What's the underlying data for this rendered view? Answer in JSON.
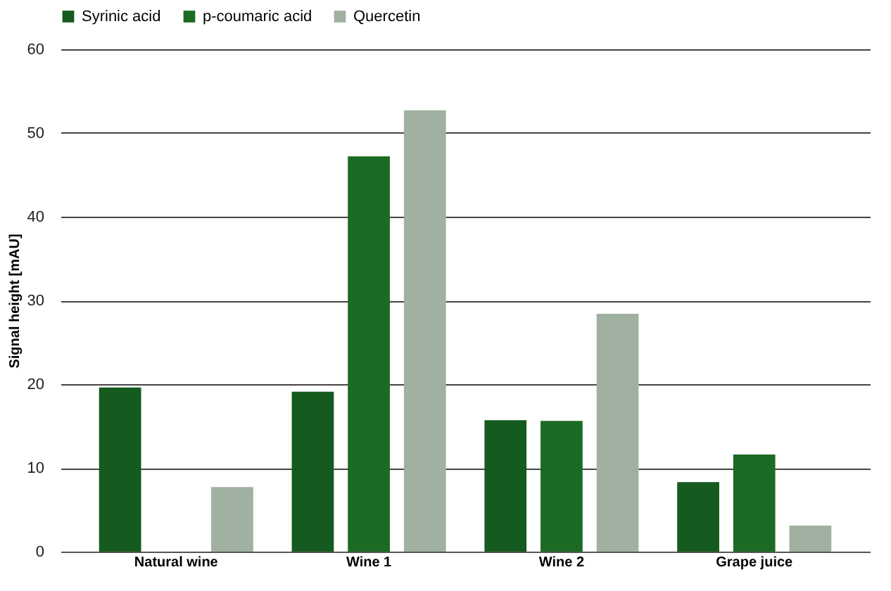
{
  "chart_data": {
    "type": "bar",
    "ylabel": "Signal height [mAU]",
    "categories": [
      "Natural wine",
      "Wine 1",
      "Wine 2",
      "Grape juice"
    ],
    "series": [
      {
        "name": "Syrinic acid",
        "color": "#155a1e",
        "values": [
          19.6,
          19.1,
          15.7,
          8.3
        ]
      },
      {
        "name": "p-coumaric acid",
        "color": "#1b6b24",
        "values": [
          null,
          47.2,
          15.6,
          11.6
        ]
      },
      {
        "name": "Quercetin",
        "color": "#a1b1a1",
        "values": [
          7.7,
          52.7,
          28.4,
          3.1
        ]
      }
    ],
    "ylim": [
      0,
      60
    ],
    "yticks": [
      0,
      10,
      20,
      30,
      40,
      50,
      60
    ],
    "grid": "y",
    "legend": "top"
  }
}
